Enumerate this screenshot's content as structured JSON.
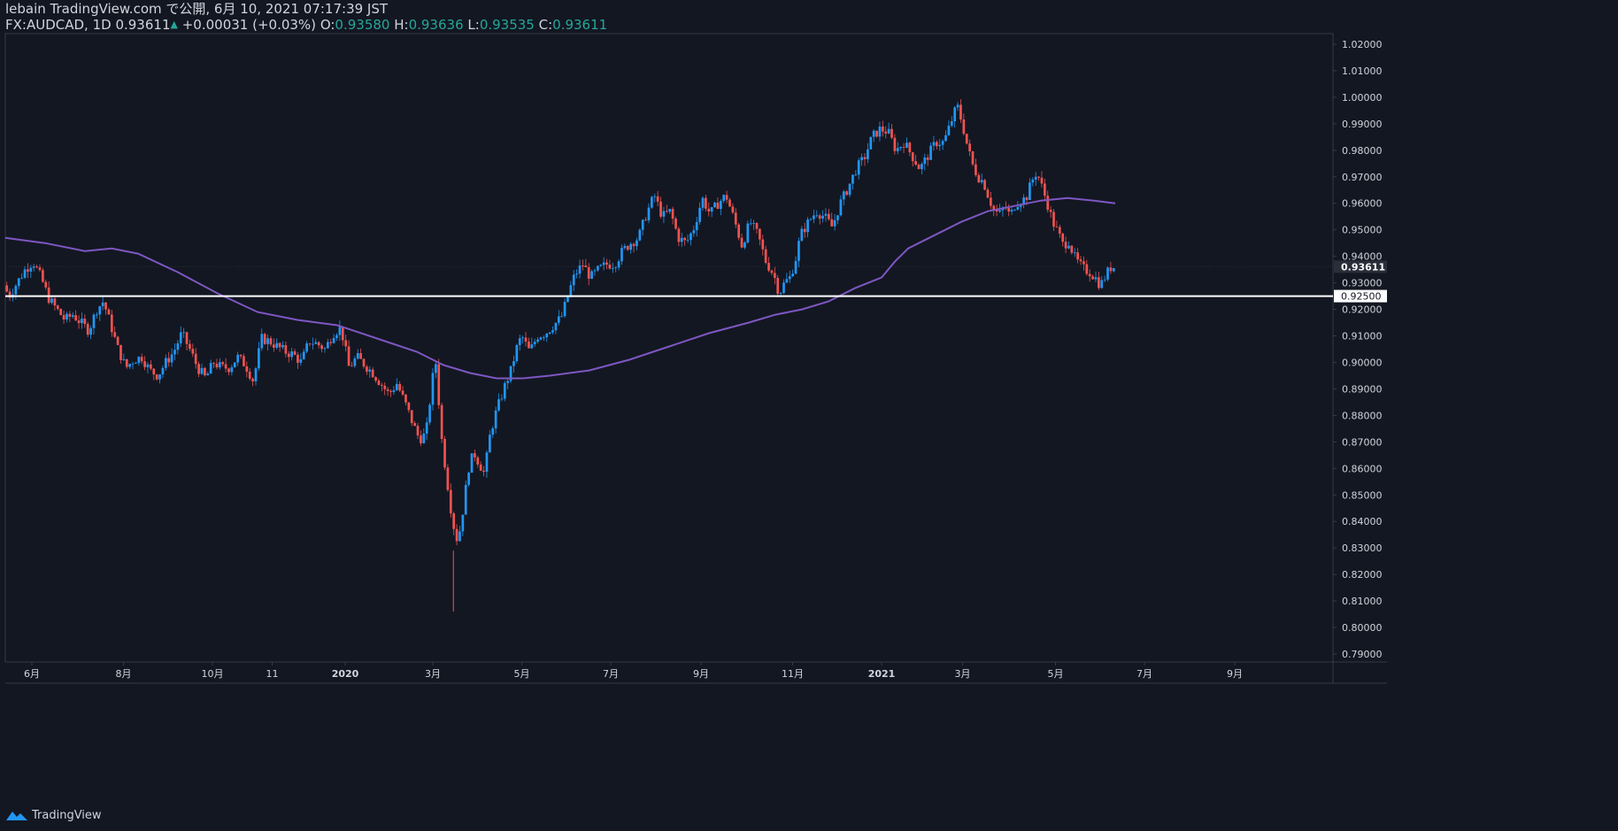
{
  "header": {
    "published": "lebain TradingView.com で公開, 6月 10, 2021 07:17:39 JST",
    "symbol": "FX:AUDCAD, 1D",
    "last": "0.93611",
    "change": "+0.00031 (+0.03%)",
    "o_label": "O:",
    "o_value": "0.93580",
    "h_label": "H:",
    "h_value": "0.93636",
    "l_label": "L:",
    "l_value": "0.93535",
    "c_label": "C:",
    "c_value": "0.93611"
  },
  "footer": {
    "brand": "TradingView"
  },
  "colors": {
    "background": "#131722",
    "up": "#2196f3",
    "down": "#ef5350",
    "ma": "#7e57c2",
    "text": "#d1d4dc",
    "line": "#ffffff",
    "grid": "#363a45"
  },
  "chart_data": {
    "type": "candlestick",
    "symbol": "FX:AUDCAD",
    "interval": "1D",
    "ylim": [
      0.787,
      1.024
    ],
    "y_ticks": [
      "1.02000",
      "1.01000",
      "1.00000",
      "0.99000",
      "0.98000",
      "0.97000",
      "0.96000",
      "0.95000",
      "0.94000",
      "0.93000",
      "0.92000",
      "0.91000",
      "0.90000",
      "0.89000",
      "0.88000",
      "0.87000",
      "0.86000",
      "0.85000",
      "0.84000",
      "0.83000",
      "0.82000",
      "0.81000",
      "0.80000",
      "0.79000"
    ],
    "x_ticks": [
      {
        "label": "6月",
        "x": 0.02
      },
      {
        "label": "8月",
        "x": 0.089
      },
      {
        "label": "10月",
        "x": 0.156
      },
      {
        "label": "11",
        "x": 0.201
      },
      {
        "label": "2020",
        "x": 0.256
      },
      {
        "label": "3月",
        "x": 0.322
      },
      {
        "label": "5月",
        "x": 0.389
      },
      {
        "label": "7月",
        "x": 0.456
      },
      {
        "label": "9月",
        "x": 0.524
      },
      {
        "label": "11月",
        "x": 0.593
      },
      {
        "label": "2021",
        "x": 0.66
      },
      {
        "label": "3月",
        "x": 0.721
      },
      {
        "label": "5月",
        "x": 0.791
      },
      {
        "label": "7月",
        "x": 0.858
      },
      {
        "label": "9月",
        "x": 0.926
      }
    ],
    "horizontal_line": {
      "price": 0.925,
      "label": "0.92500"
    },
    "last_price": {
      "price": 0.93611,
      "label": "0.93611"
    },
    "price_path": [
      [
        0.0,
        0.929
      ],
      [
        0.004,
        0.925
      ],
      [
        0.01,
        0.93
      ],
      [
        0.016,
        0.935
      ],
      [
        0.022,
        0.938
      ],
      [
        0.028,
        0.932
      ],
      [
        0.034,
        0.924
      ],
      [
        0.04,
        0.92
      ],
      [
        0.046,
        0.916
      ],
      [
        0.052,
        0.918
      ],
      [
        0.058,
        0.915
      ],
      [
        0.064,
        0.912
      ],
      [
        0.07,
        0.92
      ],
      [
        0.075,
        0.923
      ],
      [
        0.08,
        0.915
      ],
      [
        0.086,
        0.905
      ],
      [
        0.092,
        0.898
      ],
      [
        0.098,
        0.901
      ],
      [
        0.104,
        0.902
      ],
      [
        0.11,
        0.897
      ],
      [
        0.116,
        0.895
      ],
      [
        0.122,
        0.9
      ],
      [
        0.128,
        0.904
      ],
      [
        0.134,
        0.911
      ],
      [
        0.14,
        0.905
      ],
      [
        0.146,
        0.898
      ],
      [
        0.152,
        0.894
      ],
      [
        0.158,
        0.9
      ],
      [
        0.164,
        0.898
      ],
      [
        0.17,
        0.898
      ],
      [
        0.176,
        0.902
      ],
      [
        0.182,
        0.899
      ],
      [
        0.188,
        0.893
      ],
      [
        0.194,
        0.909
      ],
      [
        0.2,
        0.908
      ],
      [
        0.206,
        0.906
      ],
      [
        0.212,
        0.904
      ],
      [
        0.218,
        0.903
      ],
      [
        0.224,
        0.9
      ],
      [
        0.23,
        0.908
      ],
      [
        0.236,
        0.907
      ],
      [
        0.242,
        0.905
      ],
      [
        0.248,
        0.911
      ],
      [
        0.254,
        0.913
      ],
      [
        0.26,
        0.898
      ],
      [
        0.266,
        0.902
      ],
      [
        0.272,
        0.899
      ],
      [
        0.278,
        0.896
      ],
      [
        0.284,
        0.892
      ],
      [
        0.29,
        0.888
      ],
      [
        0.296,
        0.892
      ],
      [
        0.302,
        0.885
      ],
      [
        0.308,
        0.877
      ],
      [
        0.313,
        0.871
      ],
      [
        0.318,
        0.873
      ],
      [
        0.322,
        0.89
      ],
      [
        0.325,
        0.902
      ],
      [
        0.33,
        0.87
      ],
      [
        0.334,
        0.855
      ],
      [
        0.338,
        0.84
      ],
      [
        0.342,
        0.832
      ],
      [
        0.346,
        0.845
      ],
      [
        0.35,
        0.86
      ],
      [
        0.354,
        0.866
      ],
      [
        0.358,
        0.862
      ],
      [
        0.362,
        0.858
      ],
      [
        0.366,
        0.872
      ],
      [
        0.37,
        0.88
      ],
      [
        0.374,
        0.886
      ],
      [
        0.378,
        0.892
      ],
      [
        0.382,
        0.897
      ],
      [
        0.386,
        0.905
      ],
      [
        0.39,
        0.91
      ],
      [
        0.396,
        0.904
      ],
      [
        0.402,
        0.91
      ],
      [
        0.408,
        0.911
      ],
      [
        0.414,
        0.914
      ],
      [
        0.42,
        0.917
      ],
      [
        0.426,
        0.927
      ],
      [
        0.43,
        0.933
      ],
      [
        0.436,
        0.937
      ],
      [
        0.442,
        0.932
      ],
      [
        0.448,
        0.935
      ],
      [
        0.454,
        0.937
      ],
      [
        0.46,
        0.937
      ],
      [
        0.466,
        0.942
      ],
      [
        0.472,
        0.945
      ],
      [
        0.478,
        0.947
      ],
      [
        0.484,
        0.956
      ],
      [
        0.49,
        0.963
      ],
      [
        0.496,
        0.955
      ],
      [
        0.502,
        0.957
      ],
      [
        0.508,
        0.947
      ],
      [
        0.514,
        0.945
      ],
      [
        0.52,
        0.951
      ],
      [
        0.526,
        0.962
      ],
      [
        0.532,
        0.956
      ],
      [
        0.538,
        0.96
      ],
      [
        0.544,
        0.963
      ],
      [
        0.55,
        0.954
      ],
      [
        0.556,
        0.944
      ],
      [
        0.562,
        0.953
      ],
      [
        0.568,
        0.948
      ],
      [
        0.574,
        0.938
      ],
      [
        0.58,
        0.933
      ],
      [
        0.584,
        0.926
      ],
      [
        0.588,
        0.93
      ],
      [
        0.592,
        0.932
      ],
      [
        0.596,
        0.938
      ],
      [
        0.6,
        0.948
      ],
      [
        0.606,
        0.953
      ],
      [
        0.612,
        0.957
      ],
      [
        0.618,
        0.955
      ],
      [
        0.624,
        0.951
      ],
      [
        0.63,
        0.96
      ],
      [
        0.636,
        0.966
      ],
      [
        0.642,
        0.973
      ],
      [
        0.648,
        0.977
      ],
      [
        0.654,
        0.985
      ],
      [
        0.66,
        0.988
      ],
      [
        0.666,
        0.987
      ],
      [
        0.672,
        0.98
      ],
      [
        0.678,
        0.983
      ],
      [
        0.684,
        0.978
      ],
      [
        0.69,
        0.973
      ],
      [
        0.696,
        0.978
      ],
      [
        0.702,
        0.983
      ],
      [
        0.708,
        0.983
      ],
      [
        0.713,
        0.99
      ],
      [
        0.718,
        0.997
      ],
      [
        0.722,
        0.99
      ],
      [
        0.726,
        0.981
      ],
      [
        0.73,
        0.974
      ],
      [
        0.734,
        0.97
      ],
      [
        0.738,
        0.968
      ],
      [
        0.742,
        0.962
      ],
      [
        0.746,
        0.957
      ],
      [
        0.75,
        0.956
      ],
      [
        0.754,
        0.959
      ],
      [
        0.758,
        0.955
      ],
      [
        0.762,
        0.96
      ],
      [
        0.766,
        0.961
      ],
      [
        0.77,
        0.962
      ],
      [
        0.774,
        0.968
      ],
      [
        0.778,
        0.972
      ],
      [
        0.782,
        0.966
      ],
      [
        0.786,
        0.96
      ],
      [
        0.79,
        0.953
      ],
      [
        0.794,
        0.949
      ],
      [
        0.798,
        0.944
      ],
      [
        0.802,
        0.946
      ],
      [
        0.806,
        0.94
      ],
      [
        0.81,
        0.937
      ],
      [
        0.814,
        0.935
      ],
      [
        0.818,
        0.934
      ],
      [
        0.822,
        0.932
      ],
      [
        0.826,
        0.929
      ],
      [
        0.83,
        0.933
      ],
      [
        0.834,
        0.936
      ],
      [
        0.836,
        0.936
      ]
    ],
    "ma_path": [
      [
        0.0,
        0.947
      ],
      [
        0.03,
        0.945
      ],
      [
        0.06,
        0.942
      ],
      [
        0.08,
        0.943
      ],
      [
        0.1,
        0.941
      ],
      [
        0.13,
        0.934
      ],
      [
        0.16,
        0.926
      ],
      [
        0.19,
        0.919
      ],
      [
        0.22,
        0.916
      ],
      [
        0.25,
        0.914
      ],
      [
        0.28,
        0.909
      ],
      [
        0.31,
        0.904
      ],
      [
        0.33,
        0.899
      ],
      [
        0.35,
        0.896
      ],
      [
        0.37,
        0.894
      ],
      [
        0.39,
        0.894
      ],
      [
        0.41,
        0.895
      ],
      [
        0.44,
        0.897
      ],
      [
        0.47,
        0.901
      ],
      [
        0.5,
        0.906
      ],
      [
        0.53,
        0.911
      ],
      [
        0.56,
        0.915
      ],
      [
        0.58,
        0.918
      ],
      [
        0.6,
        0.92
      ],
      [
        0.62,
        0.923
      ],
      [
        0.64,
        0.928
      ],
      [
        0.66,
        0.932
      ],
      [
        0.67,
        0.938
      ],
      [
        0.68,
        0.943
      ],
      [
        0.7,
        0.948
      ],
      [
        0.72,
        0.953
      ],
      [
        0.74,
        0.957
      ],
      [
        0.76,
        0.959
      ],
      [
        0.78,
        0.961
      ],
      [
        0.8,
        0.962
      ],
      [
        0.82,
        0.961
      ],
      [
        0.836,
        0.96
      ]
    ]
  }
}
